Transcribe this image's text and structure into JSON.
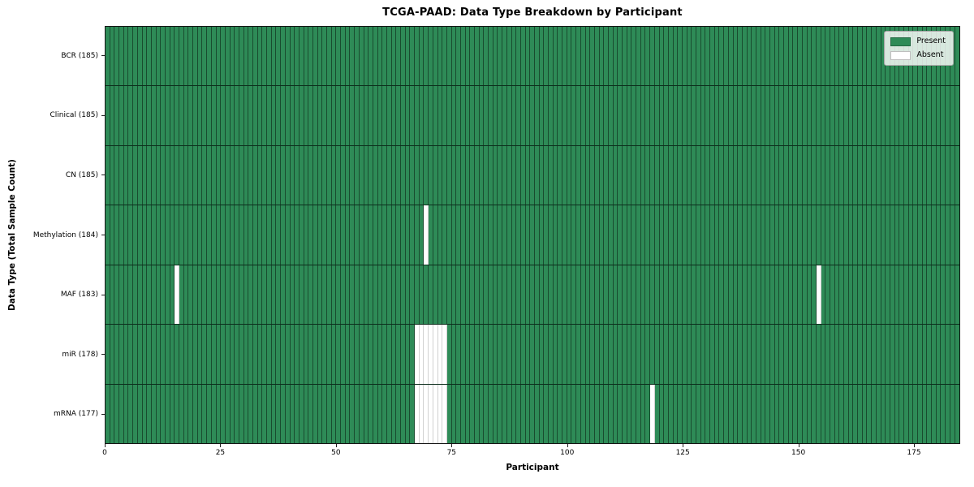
{
  "figure": {
    "title": "TCGA-PAAD: Data Type Breakdown by Participant",
    "xlabel": "Participant",
    "ylabel": "Data Type (Total Sample Count)"
  },
  "legend": {
    "items": [
      {
        "label": "Present",
        "color": "#2e8b57"
      },
      {
        "label": "Absent",
        "color": "#ffffff"
      }
    ]
  },
  "chart_data": {
    "type": "heatmap",
    "title": "TCGA-PAAD: Data Type Breakdown by Participant",
    "xlabel": "Participant",
    "ylabel": "Data Type (Total Sample Count)",
    "xlim": [
      0,
      185
    ],
    "x_ticks": [
      0,
      25,
      50,
      75,
      100,
      125,
      150,
      175
    ],
    "n_participants": 185,
    "grid": false,
    "legend_position": "upper right",
    "colors": {
      "present": "#2e8b57",
      "absent": "#ffffff"
    },
    "rows": [
      {
        "label": "BCR (185)",
        "data_type": "BCR",
        "total_samples": 185,
        "absent_participants": []
      },
      {
        "label": "Clinical (185)",
        "data_type": "Clinical",
        "total_samples": 185,
        "absent_participants": []
      },
      {
        "label": "CN (185)",
        "data_type": "CN",
        "total_samples": 185,
        "absent_participants": []
      },
      {
        "label": "Methylation (184)",
        "data_type": "Methylation",
        "total_samples": 184,
        "absent_participants": [
          69
        ]
      },
      {
        "label": "MAF (183)",
        "data_type": "MAF",
        "total_samples": 183,
        "absent_participants": [
          15,
          154
        ]
      },
      {
        "label": "miR (178)",
        "data_type": "miR",
        "total_samples": 178,
        "absent_participants": [
          67,
          68,
          69,
          70,
          71,
          72,
          73
        ]
      },
      {
        "label": "mRNA (177)",
        "data_type": "mRNA",
        "total_samples": 177,
        "absent_participants": [
          67,
          68,
          69,
          70,
          71,
          72,
          73,
          118
        ]
      }
    ]
  }
}
